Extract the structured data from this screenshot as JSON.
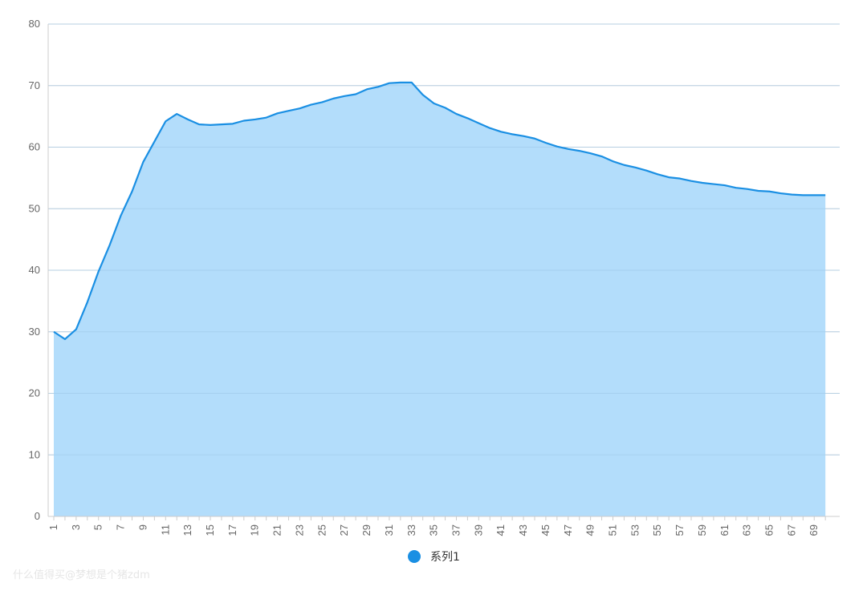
{
  "chart_data": {
    "type": "area",
    "x": [
      1,
      2,
      3,
      4,
      5,
      6,
      7,
      8,
      9,
      10,
      11,
      12,
      13,
      14,
      15,
      16,
      17,
      18,
      19,
      20,
      21,
      22,
      23,
      24,
      25,
      26,
      27,
      28,
      29,
      30,
      31,
      32,
      33,
      34,
      35,
      36,
      37,
      38,
      39,
      40,
      41,
      42,
      43,
      44,
      45,
      46,
      47,
      48,
      49,
      50,
      51,
      52,
      53,
      54,
      55,
      56,
      57,
      58,
      59,
      60,
      61,
      62,
      63,
      64,
      65,
      66,
      67,
      68,
      69,
      70
    ],
    "x_tick_labels": [
      "1",
      "3",
      "5",
      "7",
      "9",
      "11",
      "13",
      "15",
      "17",
      "19",
      "21",
      "23",
      "25",
      "27",
      "29",
      "31",
      "33",
      "35",
      "37",
      "39",
      "41",
      "43",
      "45",
      "47",
      "49",
      "51",
      "53",
      "55",
      "57",
      "59",
      "61",
      "63",
      "65",
      "67",
      "69"
    ],
    "y_ticks": [
      "0",
      "10",
      "20",
      "30",
      "40",
      "50",
      "60",
      "70",
      "80"
    ],
    "ylim": [
      0,
      80
    ],
    "grid": true,
    "legend_position": "bottom-center",
    "series": [
      {
        "name": "系列1",
        "color": "#1a8fe3",
        "fill": "#b3ddfb",
        "values": [
          30,
          28.8,
          30.4,
          34.8,
          39.8,
          44.1,
          48.9,
          52.8,
          57.6,
          60.9,
          64.2,
          65.4,
          64.5,
          63.7,
          63.6,
          63.7,
          63.8,
          64.3,
          64.5,
          64.8,
          65.5,
          65.9,
          66.3,
          66.9,
          67.3,
          67.9,
          68.3,
          68.6,
          69.4,
          69.8,
          70.4,
          70.5,
          70.5,
          68.5,
          67.1,
          66.4,
          65.4,
          64.7,
          63.9,
          63.1,
          62.5,
          62.1,
          61.8,
          61.4,
          60.7,
          60.1,
          59.7,
          59.4,
          59.0,
          58.5,
          57.7,
          57.1,
          56.7,
          56.2,
          55.6,
          55.1,
          54.9,
          54.5,
          54.2,
          54.0,
          53.8,
          53.4,
          53.2,
          52.9,
          52.8,
          52.5,
          52.3,
          52.2,
          52.2,
          52.2
        ]
      }
    ]
  },
  "watermark": "什么值得买@梦想是个猪zdm"
}
